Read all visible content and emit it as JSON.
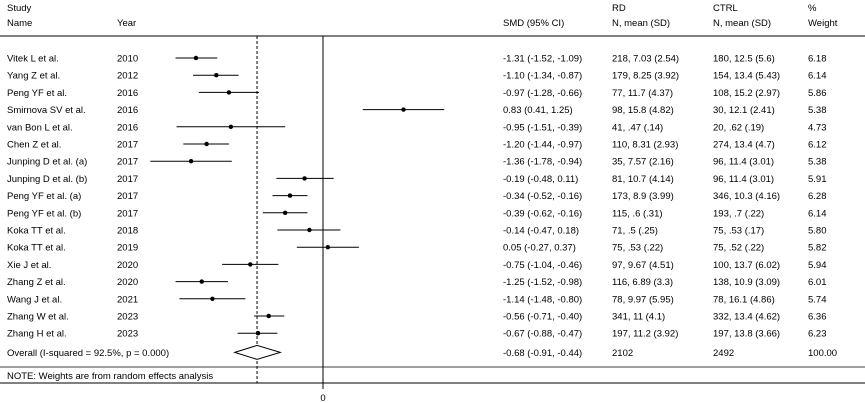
{
  "header": {
    "study_top": "Study",
    "study_bottom": "Name",
    "year": "Year",
    "smd": "SMD (95% CI)",
    "rd_top": "RD",
    "rd_bottom": "N, mean (SD)",
    "ctrl_top": "CTRL",
    "ctrl_bottom": "N, mean (SD)",
    "pct_top": "%",
    "pct_bottom": "Weight"
  },
  "note": "NOTE: Weights are from random effects analysis",
  "zero_label": "0",
  "chart_data": {
    "type": "forest",
    "null_value": 0,
    "pooled_reference": -0.68,
    "xlim": [
      -2.0,
      2.0
    ],
    "studies": [
      {
        "name": "Vitek L et al.",
        "year": "2010",
        "smd": -1.31,
        "lo": -1.52,
        "hi": -1.09,
        "ci_text": "-1.31 (-1.52, -1.09)",
        "rd": "218, 7.03 (2.54)",
        "ctrl": "180, 12.5 (5.6)",
        "weight": "6.18"
      },
      {
        "name": "Yang Z et al.",
        "year": "2012",
        "smd": -1.1,
        "lo": -1.34,
        "hi": -0.87,
        "ci_text": "-1.10 (-1.34, -0.87)",
        "rd": "179, 8.25 (3.92)",
        "ctrl": "154, 13.4 (5.43)",
        "weight": "6.14"
      },
      {
        "name": "Peng YF et al.",
        "year": "2016",
        "smd": -0.97,
        "lo": -1.28,
        "hi": -0.66,
        "ci_text": "-0.97 (-1.28, -0.66)",
        "rd": "77, 11.7 (4.37)",
        "ctrl": "108, 15.2 (2.97)",
        "weight": "5.86"
      },
      {
        "name": "Smirnova SV et al.",
        "year": "2016",
        "smd": 0.83,
        "lo": 0.41,
        "hi": 1.25,
        "ci_text": "0.83 (0.41, 1.25)",
        "rd": "98, 15.8 (4.82)",
        "ctrl": "30, 12.1 (2.41)",
        "weight": "5.38"
      },
      {
        "name": "van Bon L et al.",
        "year": "2016",
        "smd": -0.95,
        "lo": -1.51,
        "hi": -0.39,
        "ci_text": "-0.95 (-1.51, -0.39)",
        "rd": "41, .47 (.14)",
        "ctrl": "20, .62 (.19)",
        "weight": "4.73"
      },
      {
        "name": "Chen Z et al.",
        "year": "2017",
        "smd": -1.2,
        "lo": -1.44,
        "hi": -0.97,
        "ci_text": "-1.20 (-1.44, -0.97)",
        "rd": "110, 8.31 (2.93)",
        "ctrl": "274, 13.4 (4.7)",
        "weight": "6.12"
      },
      {
        "name": "Junping D et al. (a)",
        "year": "2017",
        "smd": -1.36,
        "lo": -1.78,
        "hi": -0.94,
        "ci_text": "-1.36 (-1.78, -0.94)",
        "rd": "35, 7.57 (2.16)",
        "ctrl": "96, 11.4 (3.01)",
        "weight": "5.38"
      },
      {
        "name": "Junping D et al. (b)",
        "year": "2017",
        "smd": -0.19,
        "lo": -0.48,
        "hi": 0.11,
        "ci_text": "-0.19 (-0.48, 0.11)",
        "rd": "81, 10.7 (4.14)",
        "ctrl": "96, 11.4 (3.01)",
        "weight": "5.91"
      },
      {
        "name": "Peng YF et al. (a)",
        "year": "2017",
        "smd": -0.34,
        "lo": -0.52,
        "hi": -0.16,
        "ci_text": "-0.34 (-0.52, -0.16)",
        "rd": "173, 8.9 (3.99)",
        "ctrl": "346, 10.3 (4.16)",
        "weight": "6.28"
      },
      {
        "name": "Peng YF et al. (b)",
        "year": "2017",
        "smd": -0.39,
        "lo": -0.62,
        "hi": -0.16,
        "ci_text": "-0.39 (-0.62, -0.16)",
        "rd": "115, .6 (.31)",
        "ctrl": "193, .7 (.22)",
        "weight": "6.14"
      },
      {
        "name": "Koka TT et al.",
        "year": "2018",
        "smd": -0.14,
        "lo": -0.47,
        "hi": 0.18,
        "ci_text": "-0.14 (-0.47, 0.18)",
        "rd": "71, .5 (.25)",
        "ctrl": "75, .53 (.17)",
        "weight": "5.80"
      },
      {
        "name": "Koka TT et al.",
        "year": "2019",
        "smd": 0.05,
        "lo": -0.27,
        "hi": 0.37,
        "ci_text": "0.05 (-0.27, 0.37)",
        "rd": "75, .53 (.22)",
        "ctrl": "75, .52 (.22)",
        "weight": "5.82"
      },
      {
        "name": "Xie J et al.",
        "year": "2020",
        "smd": -0.75,
        "lo": -1.04,
        "hi": -0.46,
        "ci_text": "-0.75 (-1.04, -0.46)",
        "rd": "97, 9.67 (4.51)",
        "ctrl": "100, 13.7 (6.02)",
        "weight": "5.94"
      },
      {
        "name": "Zhang Z et al.",
        "year": "2020",
        "smd": -1.25,
        "lo": -1.52,
        "hi": -0.98,
        "ci_text": "-1.25 (-1.52, -0.98)",
        "rd": "116, 6.89 (3.3)",
        "ctrl": "138, 10.9 (3.09)",
        "weight": "6.01"
      },
      {
        "name": "Wang J et al.",
        "year": "2021",
        "smd": -1.14,
        "lo": -1.48,
        "hi": -0.8,
        "ci_text": "-1.14 (-1.48, -0.80)",
        "rd": "78, 9.97 (5.95)",
        "ctrl": "78, 16.1 (4.86)",
        "weight": "5.74"
      },
      {
        "name": "Zhang W et al.",
        "year": "2023",
        "smd": -0.56,
        "lo": -0.71,
        "hi": -0.4,
        "ci_text": "-0.56 (-0.71, -0.40)",
        "rd": "341, 11 (4.1)",
        "ctrl": "332, 13.4 (4.62)",
        "weight": "6.36"
      },
      {
        "name": "Zhang H et al.",
        "year": "2023",
        "smd": -0.67,
        "lo": -0.88,
        "hi": -0.47,
        "ci_text": "-0.67 (-0.88, -0.47)",
        "rd": "197, 11.2 (3.92)",
        "ctrl": "197, 13.8 (3.66)",
        "weight": "6.23"
      }
    ],
    "overall": {
      "label": "Overall  (I-squared = 92.5%, p = 0.000)",
      "smd": -0.68,
      "lo": -0.91,
      "hi": -0.44,
      "ci_text": "-0.68 (-0.91, -0.44)",
      "rd": "2102",
      "ctrl": "2492",
      "weight": "100.00"
    }
  }
}
